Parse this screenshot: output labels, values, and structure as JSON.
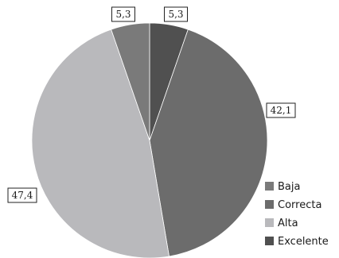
{
  "chart_data": {
    "type": "pie",
    "categories": [
      "Baja",
      "Correcta",
      "Alta",
      "Excelente"
    ],
    "values": [
      5.3,
      42.1,
      47.4,
      5.3
    ],
    "data_labels": [
      "5,3",
      "42,1",
      "47,4",
      "5,3"
    ],
    "colors": [
      "#7a7a7a",
      "#6c6c6c",
      "#b9b9bc",
      "#505050"
    ],
    "legend": {
      "placement": "bottom-right",
      "items": [
        "Baja",
        "Correcta",
        "Alta",
        "Excelente"
      ]
    },
    "draw_order": [
      "Excelente",
      "Correcta",
      "Alta",
      "Baja"
    ],
    "start_angle_note": "clockwise from 12 o'clock"
  }
}
